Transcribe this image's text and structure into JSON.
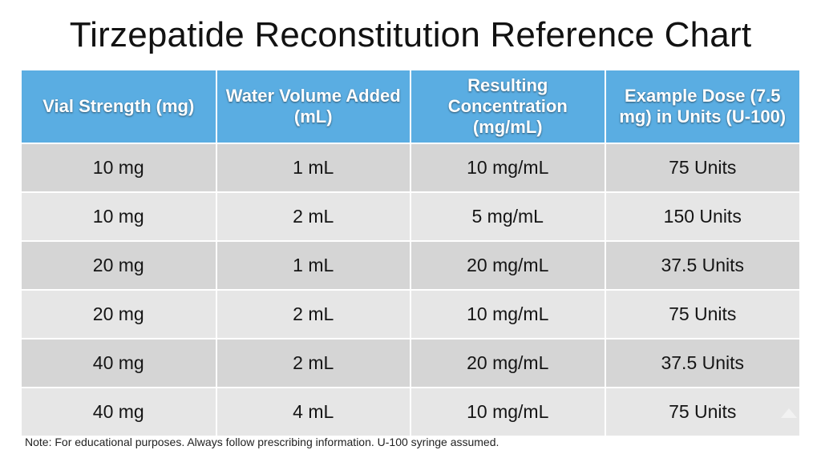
{
  "title": "Tirzepatide Reconstitution Reference Chart",
  "table": {
    "headers": [
      "Vial Strength (mg)",
      "Water Volume Added (mL)",
      "Resulting Concentration (mg/mL)",
      "Example Dose (7.5 mg) in Units (U-100)"
    ],
    "rows": [
      [
        "10 mg",
        "1 mL",
        "10 mg/mL",
        "75 Units"
      ],
      [
        "10 mg",
        "2 mL",
        "5 mg/mL",
        "150 Units"
      ],
      [
        "20 mg",
        "1 mL",
        "20 mg/mL",
        "37.5 Units"
      ],
      [
        "20 mg",
        "2 mL",
        "10 mg/mL",
        "75 Units"
      ],
      [
        "40 mg",
        "2 mL",
        "20 mg/mL",
        "37.5 Units"
      ],
      [
        "40 mg",
        "4 mL",
        "10 mg/mL",
        "75 Units"
      ]
    ]
  },
  "note": "Note: For educational purposes. Always follow prescribing information. U-100 syringe assumed.",
  "colors": {
    "header_bg": "#5aade2",
    "row_odd": "#d5d5d5",
    "row_even": "#e6e6e6"
  }
}
